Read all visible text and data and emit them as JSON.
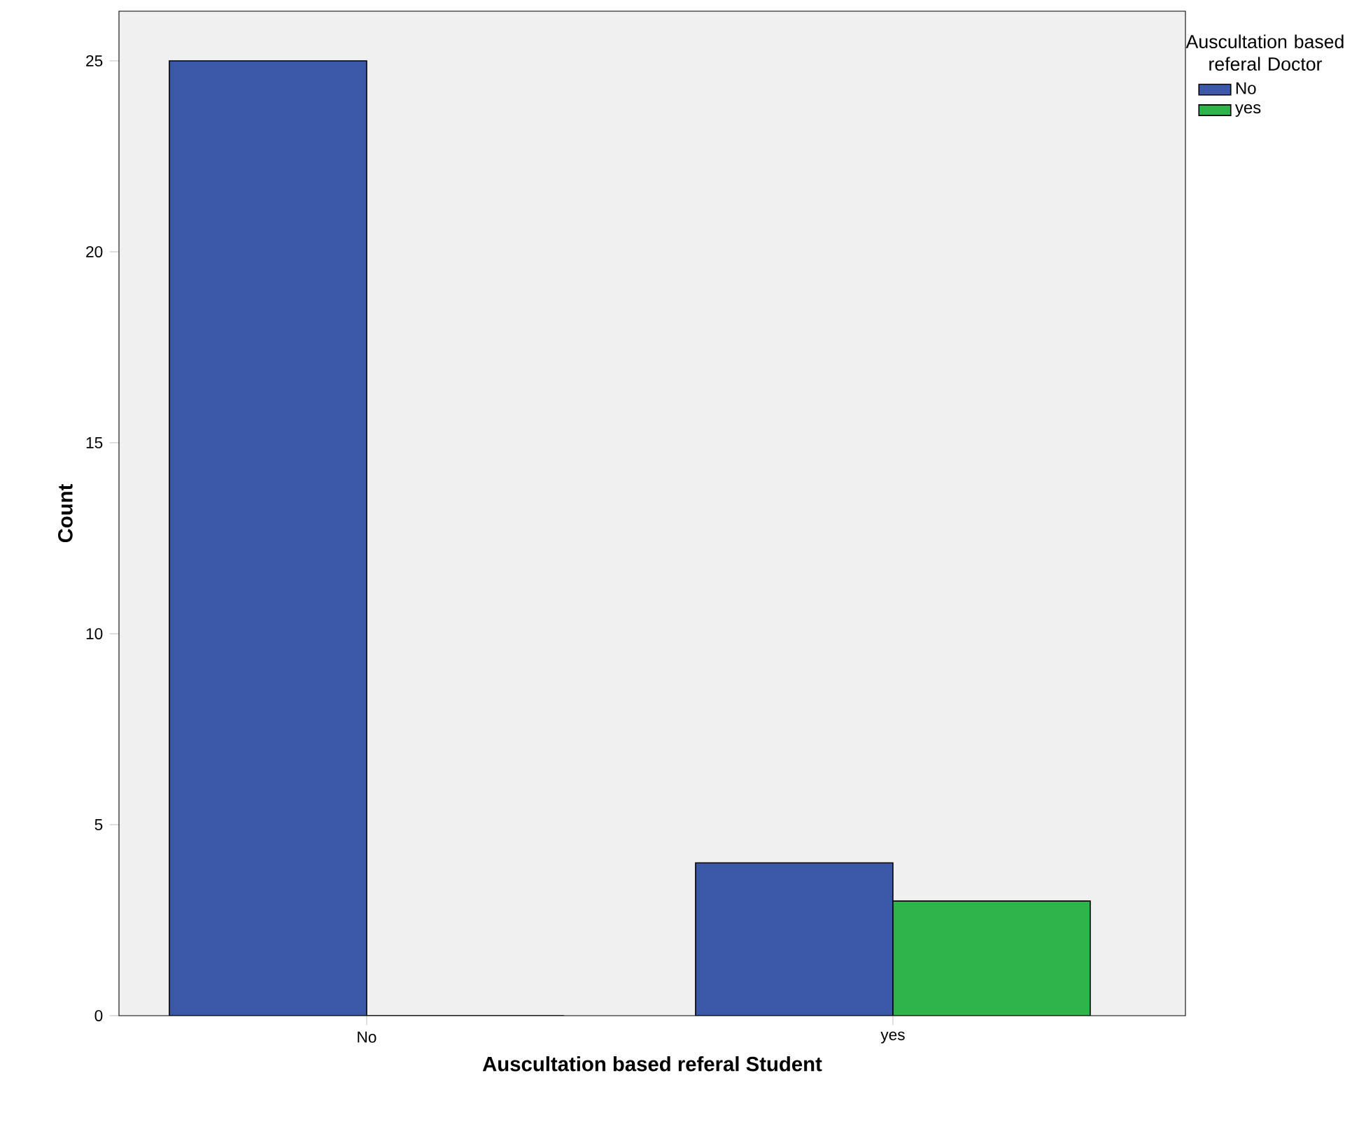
{
  "chart_data": {
    "type": "bar",
    "xlabel": "Auscultation based referal Student",
    "ylabel": "Count",
    "categories": [
      "No",
      "yes"
    ],
    "series": [
      {
        "name": "No",
        "color": "#3c58a8",
        "values": [
          25,
          4
        ]
      },
      {
        "name": "yes",
        "color": "#2db44a",
        "values": [
          0,
          3
        ]
      }
    ],
    "legend_title": "Auscultation based referal Doctor",
    "ylim": [
      0,
      26.3
    ],
    "yticks": [
      0,
      5,
      10,
      15,
      20,
      25
    ],
    "grid": false,
    "legend": "top right"
  }
}
